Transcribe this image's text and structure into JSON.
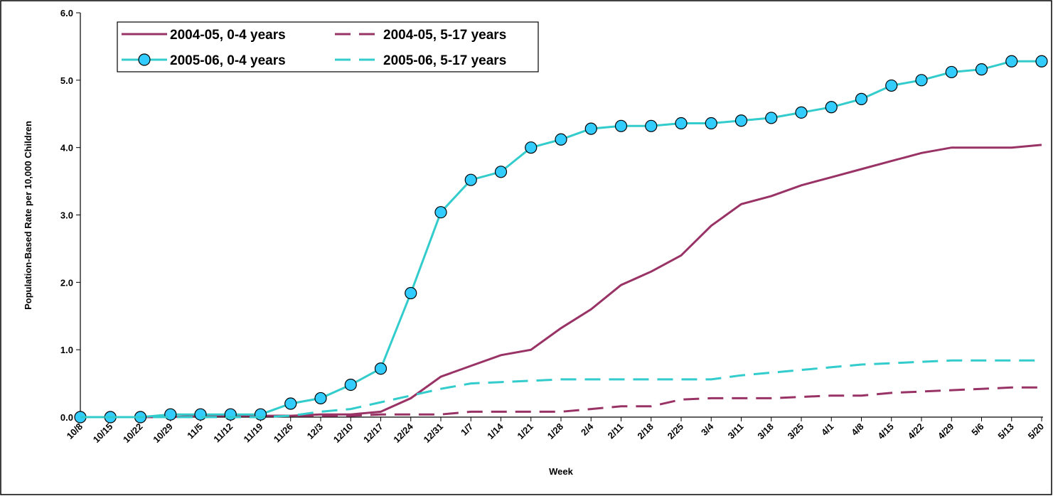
{
  "chart_data": {
    "type": "line",
    "x_label": "Week",
    "y_label": "Population-Based Rate per 10,000 Children",
    "categories": [
      "10/8",
      "10/15",
      "10/22",
      "10/29",
      "11/5",
      "11/12",
      "11/19",
      "11/26",
      "12/3",
      "12/10",
      "12/17",
      "12/24",
      "12/31",
      "1/7",
      "1/14",
      "1/21",
      "1/28",
      "2/4",
      "2/11",
      "2/18",
      "2/25",
      "3/4",
      "3/11",
      "3/18",
      "3/25",
      "4/1",
      "4/8",
      "4/15",
      "4/22",
      "4/29",
      "5/6",
      "5/13",
      "5/20"
    ],
    "series": [
      {
        "name": "2004-05, 0-4 years",
        "color": "#993366",
        "line_style": "solid",
        "values": [
          0,
          0,
          0,
          0,
          0.02,
          0.02,
          0.02,
          0.02,
          0.04,
          0.04,
          0.08,
          0.28,
          0.6,
          0.76,
          0.92,
          1.0,
          1.32,
          1.6,
          1.96,
          2.16,
          2.4,
          2.84,
          3.16,
          3.28,
          3.44,
          3.56,
          3.68,
          3.8,
          3.92,
          4.0,
          4.0,
          4.0,
          4.04
        ]
      },
      {
        "name": "2004-05, 5-17 years",
        "color": "#993366",
        "line_style": "dashed",
        "values": [
          0,
          0,
          0,
          0,
          0.02,
          0.02,
          0.02,
          0.02,
          0.02,
          0.02,
          0.04,
          0.04,
          0.04,
          0.08,
          0.08,
          0.08,
          0.08,
          0.12,
          0.16,
          0.16,
          0.26,
          0.28,
          0.28,
          0.28,
          0.3,
          0.32,
          0.32,
          0.36,
          0.38,
          0.4,
          0.42,
          0.44,
          0.44
        ]
      },
      {
        "name": "2005-06, 0-4 years",
        "color": "#33cccc",
        "line_style": "solid",
        "marker": "circle",
        "marker_color": "#33ccff",
        "values": [
          0,
          0,
          0,
          0.04,
          0.04,
          0.04,
          0.04,
          0.2,
          0.28,
          0.48,
          0.72,
          1.84,
          3.04,
          3.52,
          3.64,
          4.0,
          4.12,
          4.28,
          4.32,
          4.32,
          4.36,
          4.36,
          4.4,
          4.44,
          4.52,
          4.6,
          4.72,
          4.92,
          5.0,
          5.12,
          5.16,
          5.28,
          5.28
        ]
      },
      {
        "name": "2005-06, 5-17 years",
        "color": "#33cccc",
        "line_style": "dashed",
        "values": [
          0,
          0,
          0,
          0,
          0,
          0,
          0,
          0.02,
          0.08,
          0.12,
          0.22,
          0.32,
          0.42,
          0.5,
          0.52,
          0.54,
          0.56,
          0.56,
          0.56,
          0.56,
          0.56,
          0.56,
          0.62,
          0.66,
          0.7,
          0.74,
          0.78,
          0.8,
          0.82,
          0.84,
          0.84,
          0.84,
          0.84
        ]
      }
    ],
    "ylim": [
      0,
      6
    ],
    "yticks": [
      {
        "value": 0,
        "label": "0.0"
      },
      {
        "value": 1,
        "label": "1.0"
      },
      {
        "value": 2,
        "label": "2.0"
      },
      {
        "value": 3,
        "label": "3.0"
      },
      {
        "value": 4,
        "label": "4.0"
      },
      {
        "value": 5,
        "label": "5.0"
      },
      {
        "value": 6,
        "label": "6.0"
      }
    ],
    "grid": false,
    "legend_position": "top-left"
  }
}
